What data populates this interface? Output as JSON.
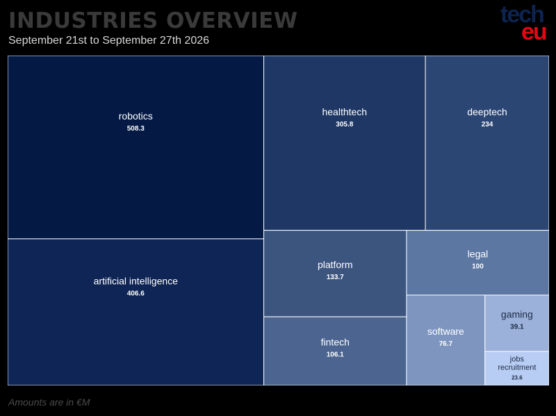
{
  "header": {
    "title": "INDUSTRIES OVERVIEW",
    "subtitle": "September 21st to September 27th 2026"
  },
  "logo": {
    "line1": "tech",
    "line2": "eu",
    "line1_color": "#0d2350",
    "line2_color": "#e30613"
  },
  "footnote": "Amounts are in €M",
  "chart_data": {
    "type": "treemap",
    "title": "INDUSTRIES OVERVIEW",
    "subtitle": "September 21st to September 27th 2026",
    "unit_note": "Amounts are in €M",
    "items": [
      {
        "name": "robotics",
        "value": 508.3,
        "color": "#041a45"
      },
      {
        "name": "artificial intelligence",
        "value": 406.6,
        "color": "#0f2555"
      },
      {
        "name": "healthtech",
        "value": 305.8,
        "color": "#1f3764"
      },
      {
        "name": "deeptech",
        "value": 234,
        "color": "#2c4673"
      },
      {
        "name": "platform",
        "value": 133.7,
        "color": "#3c557f"
      },
      {
        "name": "fintech",
        "value": 106.1,
        "color": "#4b6590"
      },
      {
        "name": "legal",
        "value": 100,
        "color": "#5d77a3"
      },
      {
        "name": "software",
        "value": 76.7,
        "color": "#7d95bf"
      },
      {
        "name": "gaming",
        "value": 39.1,
        "color": "#9bb1d9"
      },
      {
        "name": "jobs recruitment",
        "value": 23.6,
        "color": "#b8cdf3"
      }
    ]
  }
}
